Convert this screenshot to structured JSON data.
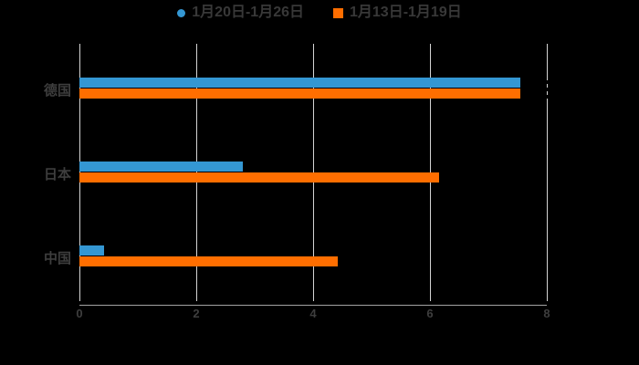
{
  "chart_data": {
    "type": "bar",
    "orientation": "horizontal",
    "title": "",
    "xlabel": "",
    "ylabel": "",
    "categories": [
      "德国",
      "日本",
      "中国"
    ],
    "series": [
      {
        "name": "1月20日-1月26日",
        "color": "#3497d3",
        "marker": "circle",
        "values": [
          7.54,
          2.79,
          0.42
        ]
      },
      {
        "name": "1月13日-1月19日",
        "color": "#ff6e00",
        "marker": "square",
        "values": [
          7.55,
          6.15,
          4.42
        ]
      }
    ],
    "xlim": [
      0,
      8
    ],
    "xticks": [
      0,
      2,
      4,
      6,
      8
    ],
    "grid": true,
    "legend_position": "top",
    "background_color": "#000000",
    "gridline_color": "#d4d4d4",
    "axis_line_color": "#a3a3a3",
    "tick_label_color": "#3e3e3e",
    "category_label_color": "#3e3e3e",
    "legend_text_color": "#383838"
  }
}
